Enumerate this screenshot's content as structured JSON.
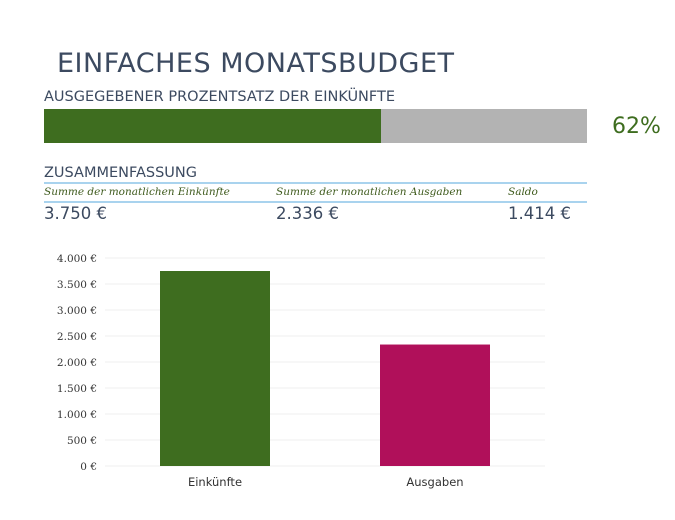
{
  "title": "EINFACHES MONATSBUDGET",
  "progress": {
    "label": "AUSGEGEBENER PROZENTSATZ DER EINKÜNFTE",
    "value": 0.62,
    "percent_text": "62%",
    "fill_color": "#3e6d1f",
    "track_color": "#b3b3b3"
  },
  "summary": {
    "label": "ZUSAMMENFASSUNG",
    "income_header": "Summe der monatlichen Einkünfte",
    "expenses_header": "Summe der monatlichen Ausgaben",
    "balance_header": "Saldo",
    "income_value": "3.750 €",
    "expenses_value": "2.336 €",
    "balance_value": "1.414 €"
  },
  "chart_data": {
    "type": "bar",
    "title": "",
    "xlabel": "",
    "ylabel": "",
    "categories": [
      "Einkünfte",
      "Ausgaben"
    ],
    "values": [
      3750,
      2336
    ],
    "colors": [
      "#3e6d1f",
      "#b0105a"
    ],
    "ylim": [
      0,
      4000
    ],
    "yticks": [
      0,
      500,
      1000,
      1500,
      2000,
      2500,
      3000,
      3500,
      4000
    ],
    "ytick_labels": [
      "0 €",
      "500 €",
      "1.000 €",
      "1.500 €",
      "2.000 €",
      "2.500 €",
      "3.000 €",
      "3.500 €",
      "4.000 €"
    ],
    "grid": true
  }
}
